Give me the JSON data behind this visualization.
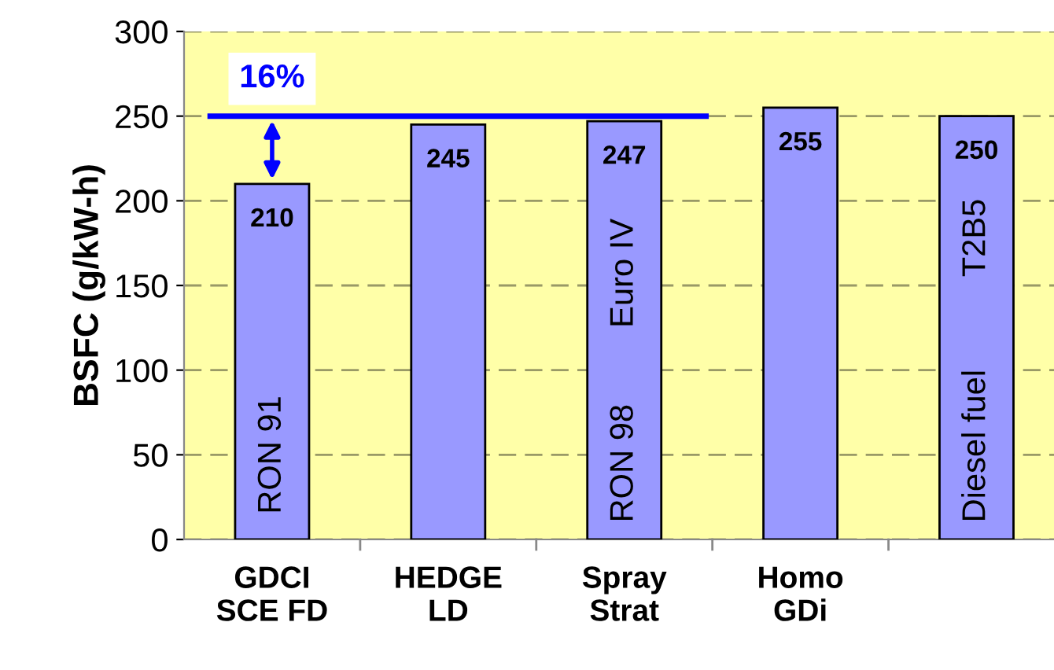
{
  "chart_data": {
    "type": "bar",
    "ylabel": "BSFC (g/kW-h)",
    "categories": [
      "GDCI\nSCE FD",
      "HEDGE\nLD",
      "Spray\nStrat",
      "Homo\nGDi",
      null
    ],
    "values": [
      210,
      245,
      247,
      255,
      250
    ],
    "color": "#9999ff",
    "data_labels": true,
    "ylim": [
      0,
      300
    ],
    "yticks": [
      0,
      50,
      100,
      150,
      200,
      250,
      300
    ],
    "grid": "y",
    "ref_lines": [
      {
        "axis": "y",
        "value": 250,
        "color": "#0000ff"
      }
    ],
    "annotations": [
      "16%",
      "RON 91",
      "RON 98",
      "Euro IV",
      "Diesel fuel",
      "T2B5"
    ]
  }
}
